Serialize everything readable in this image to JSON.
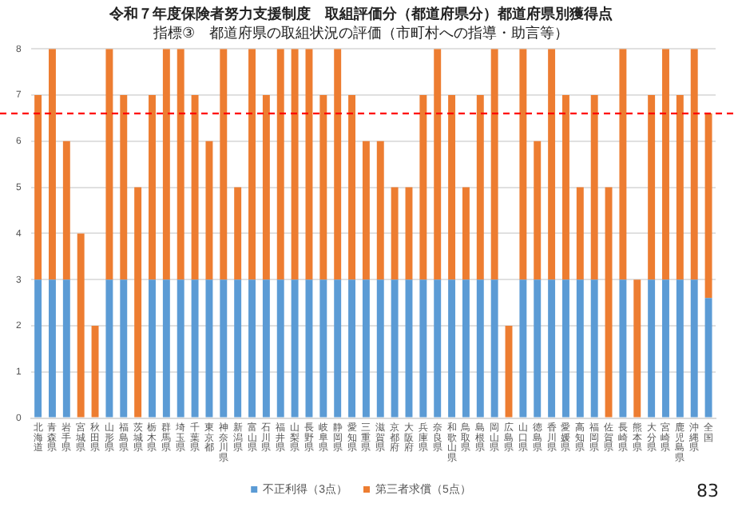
{
  "chart_data": {
    "type": "bar",
    "stacked": true,
    "title": "令和７年度保険者努力支援制度　取組評価分（都道府県分）都道府県別獲得点",
    "subtitle": "指標③　都道府県の取組状況の評価（市町村への指導・助言等）",
    "categories": [
      "北海道",
      "青森県",
      "岩手県",
      "宮城県",
      "秋田県",
      "山形県",
      "福島県",
      "茨城県",
      "栃木県",
      "群馬県",
      "埼玉県",
      "千葉県",
      "東京都",
      "神奈川県",
      "新潟県",
      "富山県",
      "石川県",
      "福井県",
      "山梨県",
      "長野県",
      "岐阜県",
      "静岡県",
      "愛知県",
      "三重県",
      "滋賀県",
      "京都府",
      "大阪府",
      "兵庫県",
      "奈良県",
      "和歌山県",
      "鳥取県",
      "島根県",
      "岡山県",
      "広島県",
      "山口県",
      "徳島県",
      "香川県",
      "愛媛県",
      "高知県",
      "福岡県",
      "佐賀県",
      "長崎県",
      "熊本県",
      "大分県",
      "宮崎県",
      "鹿児島県",
      "沖縄県",
      "全国"
    ],
    "series": [
      {
        "name": "不正利得（3点）",
        "color": "#5b9bd5",
        "values": [
          3,
          3,
          3,
          0,
          0,
          3,
          3,
          0,
          3,
          3,
          3,
          3,
          3,
          3,
          3,
          3,
          3,
          3,
          3,
          3,
          3,
          3,
          3,
          3,
          3,
          3,
          3,
          3,
          3,
          3,
          3,
          3,
          3,
          0,
          3,
          3,
          3,
          3,
          3,
          3,
          0,
          3,
          0,
          3,
          3,
          3,
          3,
          2.6
        ]
      },
      {
        "name": "第三者求償（5点）",
        "color": "#ed7d31",
        "values": [
          4,
          5,
          3,
          4,
          2,
          5,
          4,
          5,
          4,
          5,
          5,
          4,
          3,
          5,
          2,
          5,
          4,
          5,
          5,
          5,
          4,
          5,
          4,
          3,
          3,
          2,
          2,
          4,
          5,
          4,
          2,
          4,
          5,
          2,
          5,
          3,
          5,
          4,
          2,
          4,
          5,
          5,
          3,
          4,
          5,
          4,
          5,
          4.0
        ]
      }
    ],
    "ylim": [
      0,
      8
    ],
    "yticks": [
      0,
      1,
      2,
      3,
      4,
      5,
      6,
      7,
      8
    ],
    "grid": "y",
    "legend": "bottom",
    "ref_lines": [
      {
        "axis": "y",
        "value": 6.6,
        "color": "#ff0000",
        "line_style": "dashed"
      }
    ],
    "annotations": [
      "83"
    ]
  }
}
